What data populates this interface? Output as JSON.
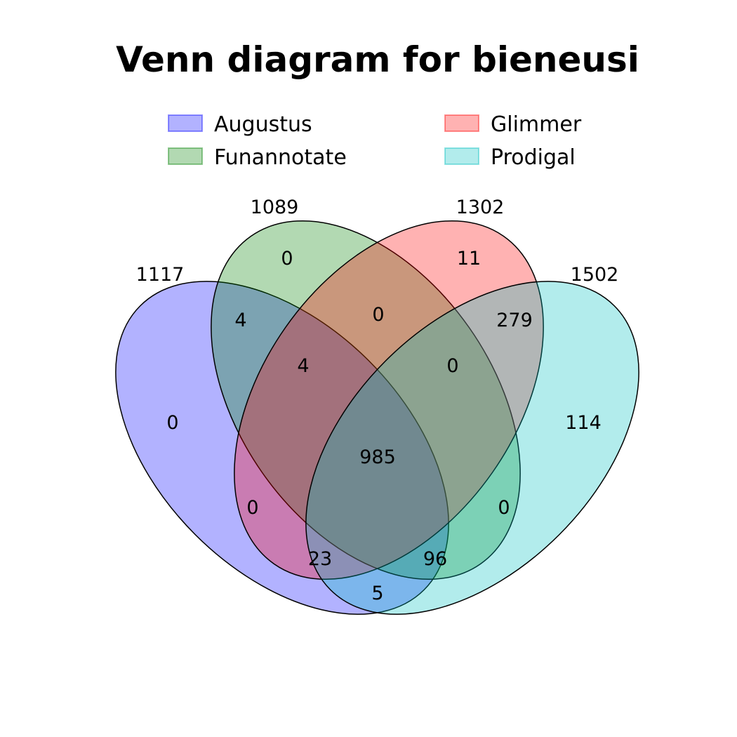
{
  "title": "Venn diagram for bieneusi",
  "sets": [
    {
      "name": "Augustus",
      "color": "#6666ff",
      "total": "1117"
    },
    {
      "name": "Funannotate",
      "color": "#66b266",
      "total": "1089"
    },
    {
      "name": "Glimmer",
      "color": "#ff6666",
      "total": "1302"
    },
    {
      "name": "Prodigal",
      "color": "#66d8d8",
      "total": "1502"
    }
  ],
  "regions": {
    "A": "0",
    "F": "0",
    "G": "11",
    "P": "114",
    "AF": "4",
    "FG": "0",
    "GP": "279",
    "AP": "5",
    "AFG": "4",
    "FGP": "0",
    "AGP": "23",
    "AFP": "96",
    "AG": "0",
    "FP": "0",
    "AFGP": "985"
  }
}
